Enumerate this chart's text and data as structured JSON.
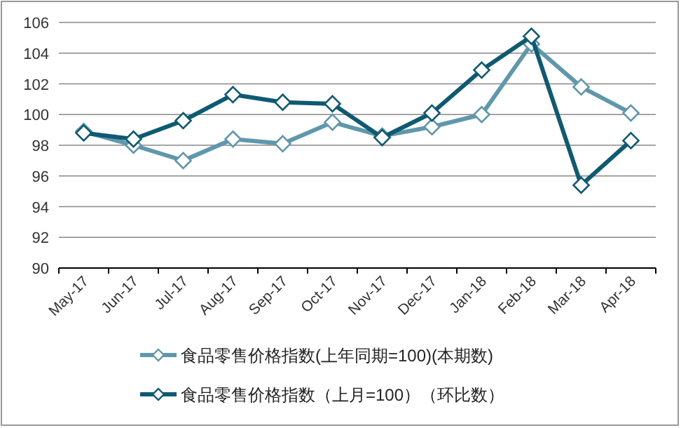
{
  "chart_data": {
    "type": "line",
    "categories": [
      "May-17",
      "Jun-17",
      "Jul-17",
      "Aug-17",
      "Sep-17",
      "Oct-17",
      "Nov-17",
      "Dec-17",
      "Jan-18",
      "Feb-18",
      "Mar-18",
      "Apr-18"
    ],
    "series": [
      {
        "name": "食品零售价格指数(上年同期=100)(本期数)",
        "color": "#5f98ac",
        "values": [
          98.9,
          98.0,
          97.0,
          98.4,
          98.1,
          99.5,
          98.6,
          99.2,
          100.0,
          104.6,
          101.8,
          100.1
        ]
      },
      {
        "name": "食品零售价格指数（上月=100）（环比数）",
        "color": "#0d5a72",
        "values": [
          98.8,
          98.4,
          99.6,
          101.3,
          100.8,
          100.7,
          98.5,
          100.1,
          102.9,
          105.1,
          95.4,
          98.3
        ]
      }
    ],
    "ylim": [
      90,
      106
    ],
    "yticks": [
      90,
      92,
      94,
      96,
      98,
      100,
      102,
      104,
      106
    ],
    "grid": "y",
    "legend": "bottom",
    "marker": "diamond",
    "line_style": "solid"
  }
}
